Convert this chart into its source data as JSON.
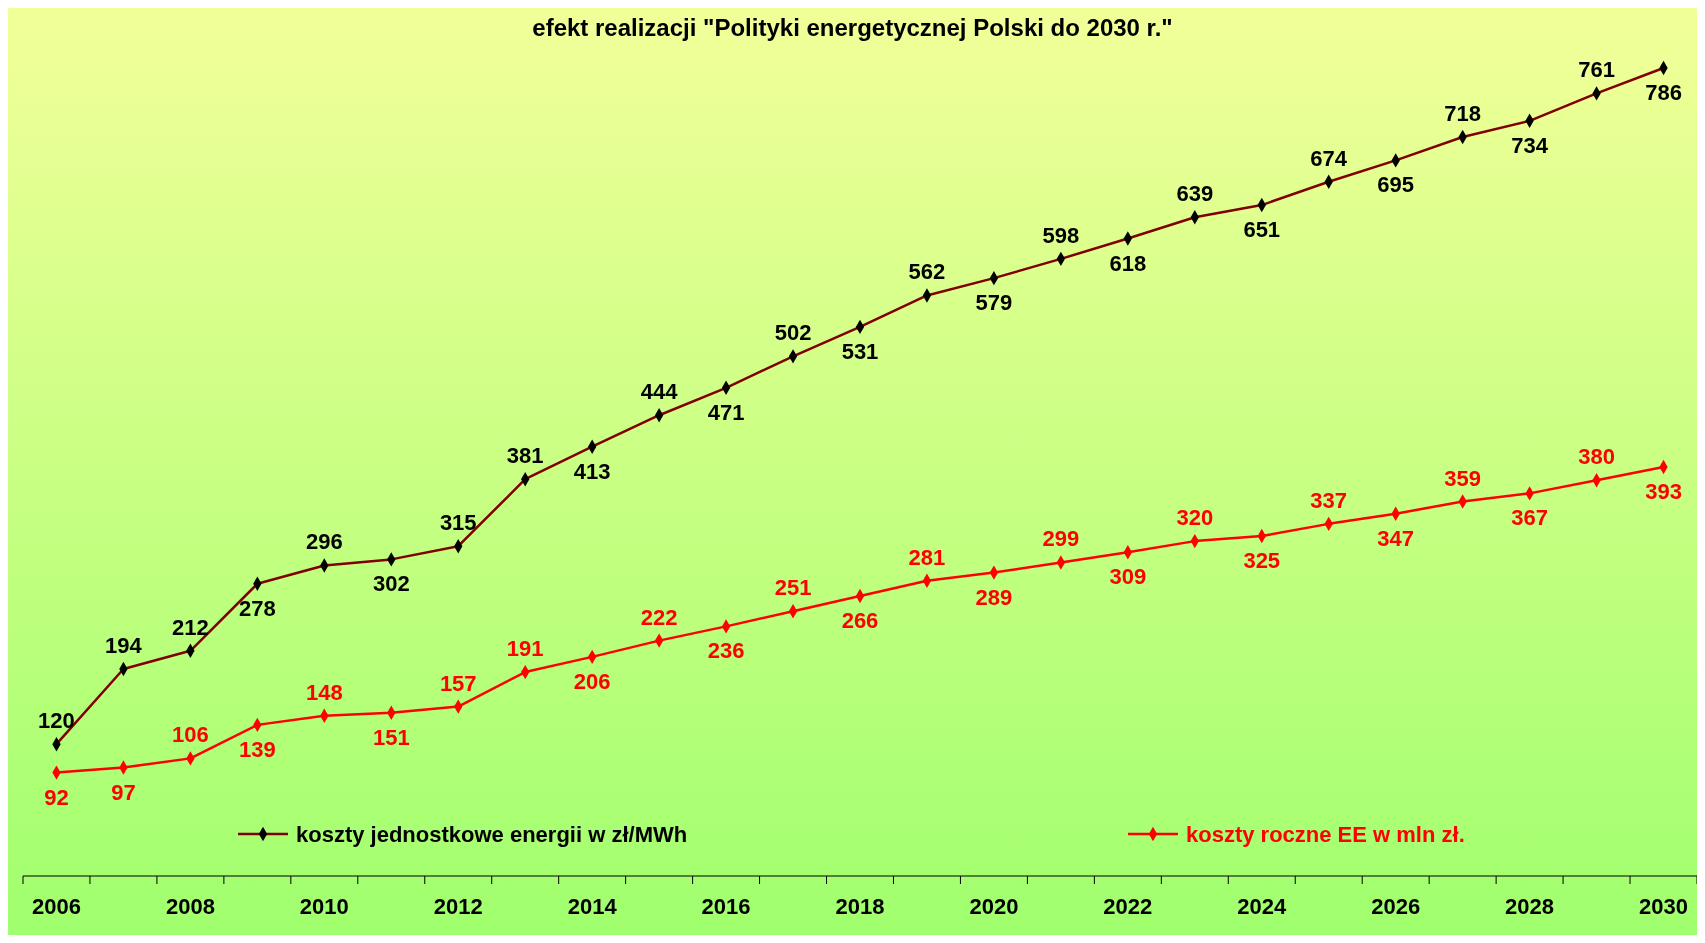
{
  "chart_data": {
    "type": "line",
    "title": "efekt realizacji \"Polityki energetycznej Polski do 2030 r.\"",
    "categories": [
      "2006",
      null,
      "2008",
      null,
      "2010",
      null,
      "2012",
      null,
      "2014",
      null,
      "2016",
      null,
      "2018",
      null,
      "2020",
      null,
      "2022",
      null,
      "2024",
      null,
      "2026",
      null,
      "2028",
      null,
      "2030"
    ],
    "series": [
      {
        "name": "koszty jednostkowe energii w zł/MWh",
        "color": "#800000",
        "values": [
          120,
          194,
          212,
          278,
          296,
          302,
          315,
          381,
          413,
          444,
          471,
          502,
          531,
          562,
          579,
          598,
          618,
          639,
          651,
          674,
          695,
          718,
          734,
          761,
          786
        ]
      },
      {
        "name": "koszty roczne EE w mln zł.",
        "color": "#ff0000",
        "values": [
          92,
          97,
          106,
          139,
          148,
          151,
          157,
          191,
          206,
          222,
          236,
          251,
          266,
          281,
          289,
          299,
          309,
          320,
          325,
          337,
          347,
          359,
          367,
          380,
          393
        ]
      }
    ],
    "data_labels": true,
    "marker": "diamond",
    "legend": "bottom"
  }
}
